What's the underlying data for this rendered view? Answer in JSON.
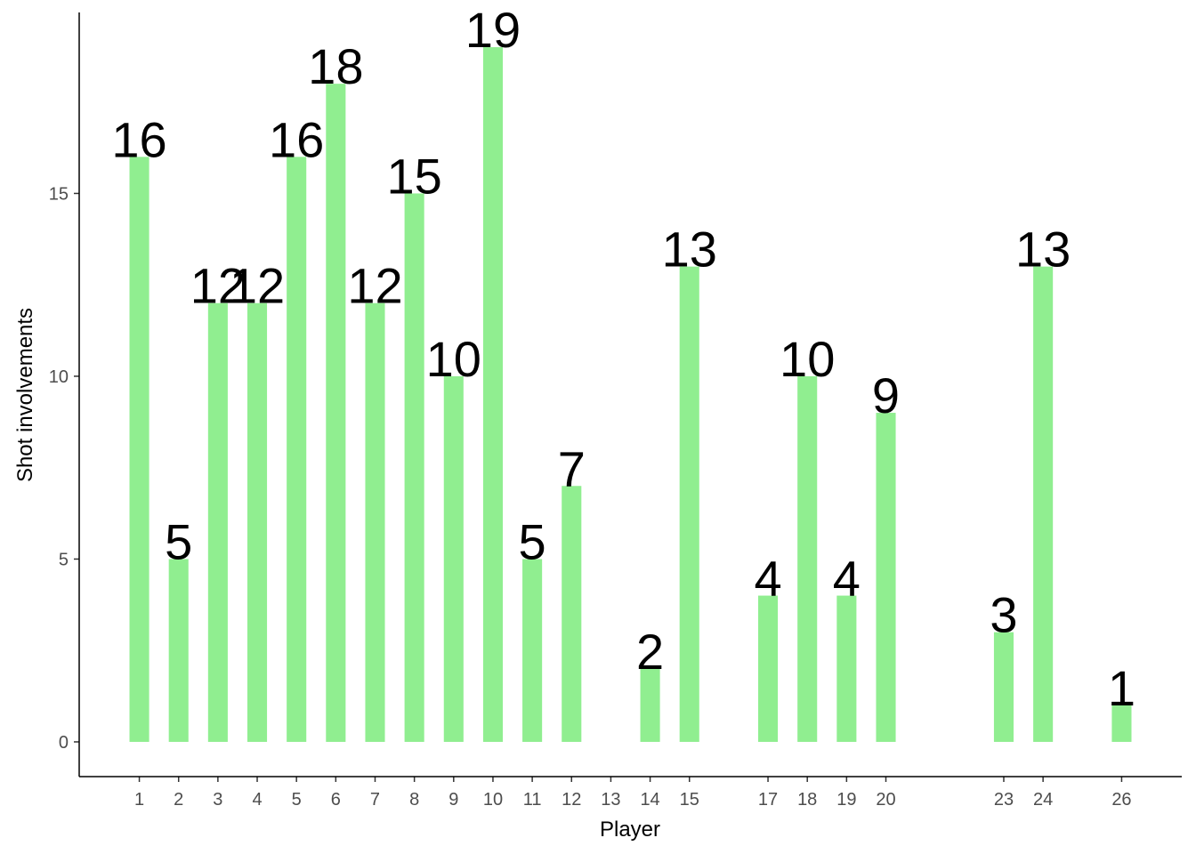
{
  "chart_data": {
    "type": "bar",
    "x_label": "Player",
    "y_label": "Shot involvements",
    "x": [
      1,
      2,
      3,
      4,
      5,
      6,
      7,
      8,
      9,
      10,
      11,
      12,
      14,
      15,
      17,
      18,
      19,
      20,
      23,
      24,
      26
    ],
    "values": [
      16,
      5,
      12,
      12,
      16,
      18,
      12,
      15,
      10,
      19,
      5,
      7,
      2,
      13,
      4,
      10,
      4,
      9,
      3,
      13,
      1
    ],
    "color": "#90ee90",
    "xlim": [
      -0.53,
      27.53
    ],
    "xticks": [
      1,
      2,
      3,
      4,
      5,
      6,
      7,
      8,
      9,
      10,
      11,
      12,
      13,
      14,
      15,
      17,
      18,
      19,
      20,
      23,
      24,
      26
    ],
    "ylim": [
      -0.95,
      19.95
    ],
    "yticks": [
      0,
      5,
      10,
      15
    ]
  }
}
